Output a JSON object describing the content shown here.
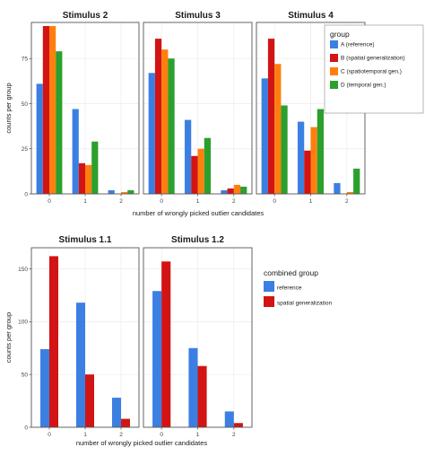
{
  "colors": {
    "reference": "#3b7fe3",
    "spatial_generalization": "#d21414",
    "spatiotemporal": "#ff7f0e",
    "temporal": "#2ca02c",
    "panel_border": "#555555",
    "grid": "#ebebeb"
  },
  "chart_data": [
    {
      "type": "bar",
      "panel_titles": [
        "Stimulus 2",
        "Stimulus 3",
        "Stimulus 4"
      ],
      "categories": [
        "0",
        "1",
        "2"
      ],
      "ylabel": "counts per group",
      "xlabel": "number of wrongly picked outlier candidates",
      "ylim": [
        0,
        95
      ],
      "yticks": [
        0,
        25,
        50,
        75
      ],
      "grid": true,
      "legend_title": "group",
      "legend_position": "top-right inside last panel",
      "series": [
        {
          "name": "A (reference)",
          "color_key": "reference"
        },
        {
          "name": "B (spatial generalization)",
          "color_key": "spatial_generalization"
        },
        {
          "name": "C (spatiotemporal gen.)",
          "color_key": "spatiotemporal"
        },
        {
          "name": "D (temporal gen.)",
          "color_key": "temporal"
        }
      ],
      "values": [
        [
          [
            61,
            93,
            93,
            79
          ],
          [
            47,
            17,
            16,
            29
          ],
          [
            2,
            0,
            1,
            2
          ]
        ],
        [
          [
            67,
            86,
            80,
            75
          ],
          [
            41,
            21,
            25,
            31
          ],
          [
            2,
            3,
            5,
            4
          ]
        ],
        [
          [
            64,
            86,
            72,
            49
          ],
          [
            40,
            24,
            37,
            47
          ],
          [
            6,
            0,
            1,
            14
          ]
        ]
      ]
    },
    {
      "type": "bar",
      "panel_titles": [
        "Stimulus 1.1",
        "Stimulus 1.2"
      ],
      "categories": [
        "0",
        "1",
        "2"
      ],
      "ylabel": "counts per group",
      "xlabel": "number of wrongly picked outlier candidates",
      "ylim": [
        0,
        170
      ],
      "yticks": [
        0,
        50,
        100,
        150
      ],
      "grid": true,
      "legend_title": "combined group",
      "legend_position": "right, outside panels",
      "series": [
        {
          "name": "reference",
          "color_key": "reference"
        },
        {
          "name": "spatial generalization",
          "color_key": "spatial_generalization"
        }
      ],
      "values": [
        [
          [
            74,
            162
          ],
          [
            118,
            50
          ],
          [
            28,
            8
          ]
        ],
        [
          [
            129,
            157
          ],
          [
            75,
            58
          ],
          [
            15,
            4
          ]
        ]
      ]
    }
  ]
}
